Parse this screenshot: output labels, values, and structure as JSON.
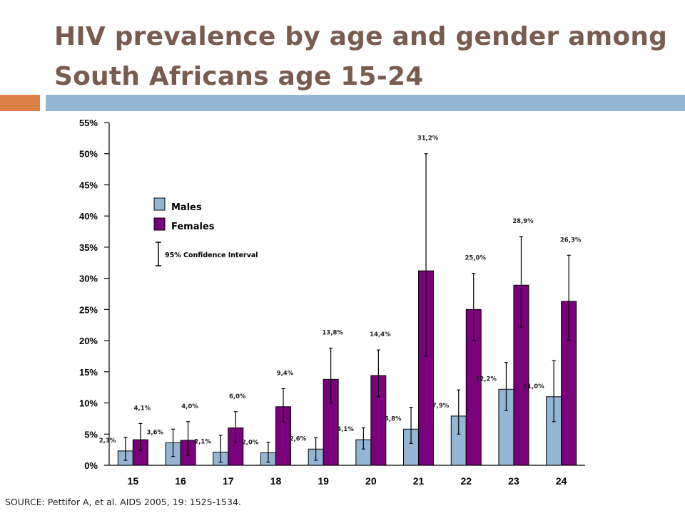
{
  "slide": {
    "title": "HIV prevalence by age and gender among South Africans age 15-24",
    "source": "SOURCE: Pettifor A, et al. AIDS 2005, 19: 1525-1534.",
    "band_colors": {
      "left": "#dd8047",
      "right": "#94b6d2"
    },
    "title_color": "#7a5b4f"
  },
  "chart_data": {
    "type": "bar",
    "title": "",
    "xlabel": "",
    "ylabel": "",
    "ylim": [
      0,
      55
    ],
    "yticks": [
      0,
      5,
      10,
      15,
      20,
      25,
      30,
      35,
      40,
      45,
      50,
      55
    ],
    "ytick_labels": [
      "0%",
      "5%",
      "10%",
      "15%",
      "20%",
      "25%",
      "30%",
      "35%",
      "40%",
      "45%",
      "50%",
      "55%"
    ],
    "categories": [
      "15",
      "16",
      "17",
      "18",
      "19",
      "20",
      "21",
      "22",
      "23",
      "24"
    ],
    "series": [
      {
        "name": "Males",
        "color": "#94b6d2",
        "values": [
          2.3,
          3.6,
          2.1,
          2.0,
          2.6,
          4.1,
          5.8,
          7.9,
          12.2,
          11.0
        ],
        "labels": [
          "2,3%",
          "3,6%",
          "2,1%",
          "2,0%",
          "2,6%",
          "4,1%",
          "5,8%",
          "7,9%",
          "12,2%",
          "11,0%"
        ],
        "ci_low": [
          0.8,
          1.4,
          0.5,
          0.5,
          0.8,
          2.6,
          3.5,
          5.0,
          8.8,
          7.0
        ],
        "ci_high": [
          4.5,
          5.8,
          4.8,
          3.7,
          4.4,
          6.0,
          9.3,
          12.1,
          16.5,
          16.8
        ]
      },
      {
        "name": "Females",
        "color": "#7b007b",
        "values": [
          4.1,
          4.0,
          6.0,
          9.4,
          13.8,
          14.4,
          31.2,
          25.0,
          28.9,
          26.3
        ],
        "labels": [
          "4,1%",
          "4,0%",
          "6,0%",
          "9,4%",
          "13,8%",
          "14,4%",
          "31,2%",
          "25,0%",
          "28,9%",
          "26,3%"
        ],
        "ci_low": [
          2.4,
          1.6,
          3.7,
          7.0,
          10.0,
          11.0,
          17.5,
          20.0,
          22.2,
          20.0
        ],
        "ci_high": [
          6.7,
          7.0,
          8.6,
          12.3,
          18.8,
          18.5,
          50.0,
          30.8,
          36.7,
          33.7
        ]
      }
    ],
    "legend": {
      "position": "upper-left",
      "items": [
        "Males",
        "Females"
      ],
      "ci_label": "95% Confidence Interval"
    },
    "grid": false
  }
}
